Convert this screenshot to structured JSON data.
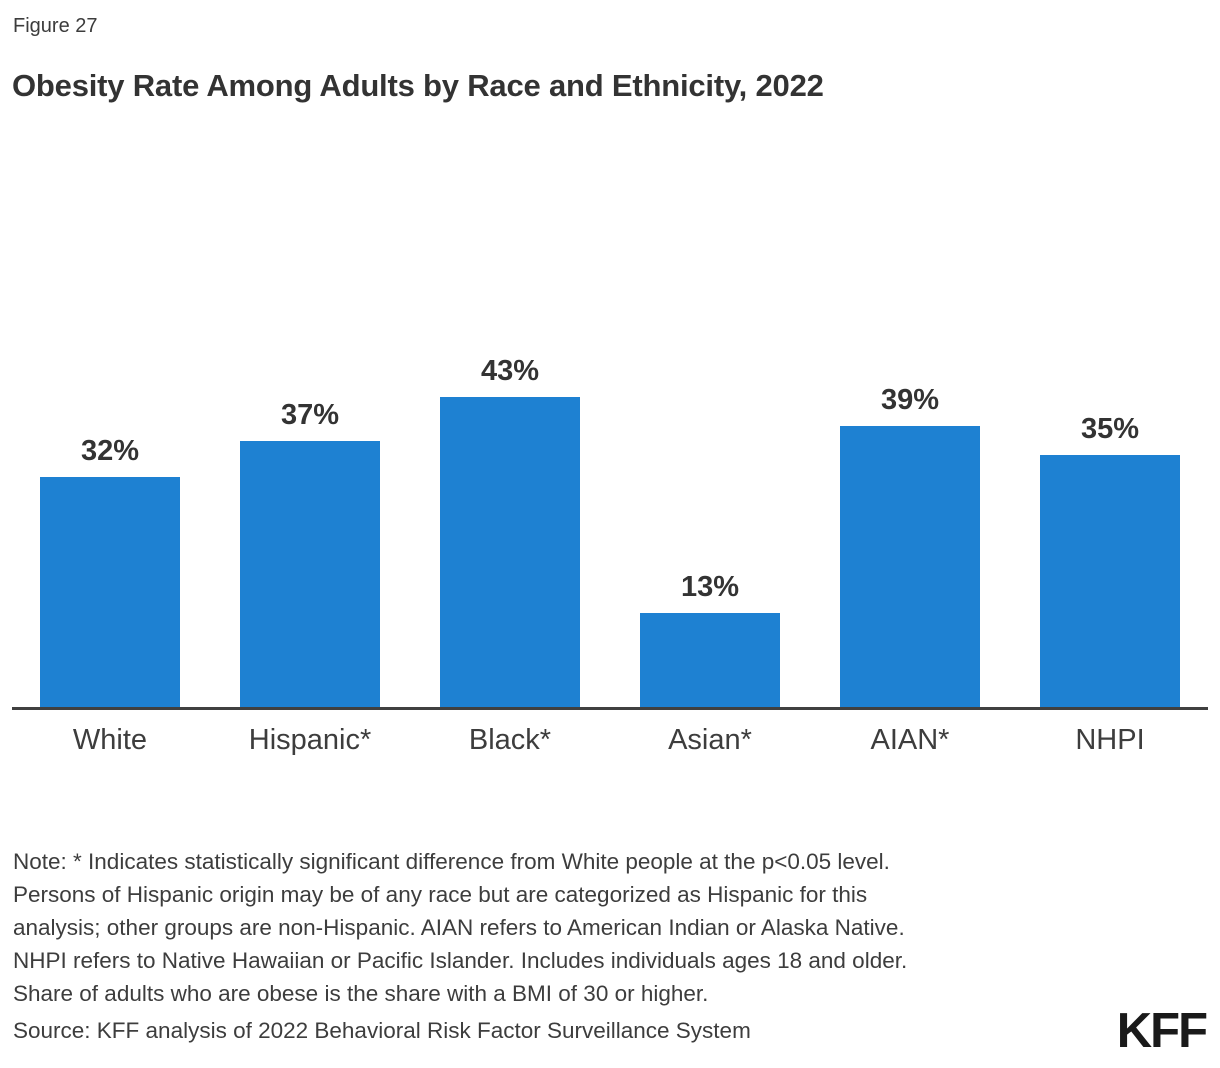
{
  "figure_label": "Figure 27",
  "title": "Obesity Rate Among Adults by Race and Ethnicity, 2022",
  "chart_data": {
    "type": "bar",
    "categories": [
      "White",
      "Hispanic*",
      "Black*",
      "Asian*",
      "AIAN*",
      "NHPI"
    ],
    "values": [
      32,
      37,
      43,
      13,
      39,
      35
    ],
    "value_labels": [
      "32%",
      "37%",
      "43%",
      "13%",
      "39%",
      "35%"
    ],
    "title": "Obesity Rate Among Adults by Race and Ethnicity, 2022",
    "xlabel": "",
    "ylabel": "",
    "ylim": [
      0,
      50
    ],
    "grid": false,
    "legend": false,
    "bar_color": "#1E81D2",
    "axis_color": "#404040"
  },
  "note": {
    "lines": [
      "Note: * Indicates statistically significant difference from White people at the p<0.05 level.",
      "Persons of Hispanic origin may be of any race but are categorized as Hispanic for this",
      "analysis; other groups are non-Hispanic. AIAN refers to American Indian or Alaska Native.",
      "NHPI refers to Native Hawaiian or Pacific Islander. Includes individuals ages 18 and older.",
      "Share of adults who are obese is the share with a BMI of 30 or higher."
    ]
  },
  "source": "Source: KFF analysis of 2022 Behavioral Risk Factor Surveillance System",
  "logo_text": "KFF",
  "colors": {
    "bar": "#1E81D2",
    "axis": "#404040",
    "title_text": "#333333",
    "body_text": "#3d3d3d"
  }
}
